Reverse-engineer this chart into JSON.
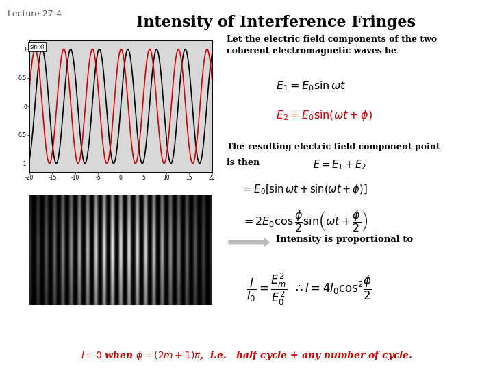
{
  "title": "Intensity of Interference Fringes",
  "lecture_label": "Lecture 27-4",
  "bg_color": "#ffffff",
  "title_fontsize": 16,
  "title_fontweight": "bold",
  "text_intro": "Let the electric field components of the two\ncoherent electromagnetic waves be",
  "text_resulting": "The resulting electric field component point ",
  "text_is_then": "is then",
  "eq1": "$E_1 = E_0 \\sin \\omega t$",
  "eq2": "$E_2 = E_0 \\sin(\\omega t + \\phi)$",
  "eq3": "$E = E_1 + E_2$",
  "eq4": "$= E_0\\left[\\sin \\omega t + \\sin(\\omega t + \\phi)\\right]$",
  "eq5": "$= 2E_0 \\cos\\dfrac{\\phi}{2}\\sin\\!\\left(\\omega t + \\dfrac{\\phi}{2}\\right)$",
  "intensity_label": "Intensity is proportional to ",
  "eq6": "$\\dfrac{I}{I_0} = \\dfrac{E_m^2}{E_0^2} \\;\\;\\therefore I = 4I_0 \\cos^2\\!\\dfrac{\\phi}{2}$",
  "bottom_note": "I=0 when $\\phi$ = (2m+1)$\\pi$,  i.e.   half cycle + any number of cycle.",
  "sin_color1": "#000000",
  "sin_color2": "#cc0000",
  "phase_shift": 1.5,
  "fringe_num_stripes": 22,
  "fringe_center_bright": true,
  "arrow_color": "#aaaaaa"
}
